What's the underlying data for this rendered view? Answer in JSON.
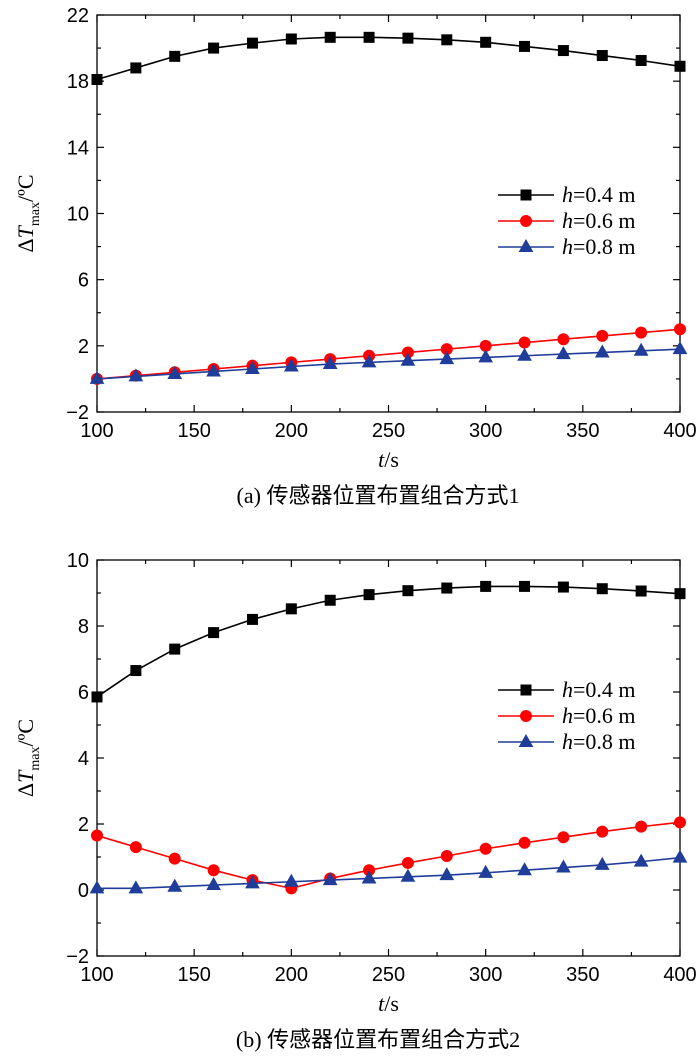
{
  "chart_data": [
    {
      "type": "line",
      "caption": "(a) 传感器位置布置组合方式1",
      "xlabel_var": "t",
      "xlabel_unit": "/s",
      "ylabel_delta": "Δ",
      "ylabel_var": "T",
      "ylabel_sub": "max",
      "ylabel_unit": "/ºC",
      "xlim": [
        100,
        400
      ],
      "ylim": [
        -2,
        22
      ],
      "xticks": [
        100,
        150,
        200,
        250,
        300,
        350,
        400
      ],
      "yticks": [
        -2,
        2,
        6,
        10,
        14,
        18,
        22
      ],
      "ytick_labels": [
        "−2",
        "2",
        "6",
        "10",
        "14",
        "18",
        "22"
      ],
      "x": [
        100,
        120,
        140,
        160,
        180,
        200,
        220,
        240,
        260,
        280,
        300,
        320,
        340,
        360,
        380,
        400
      ],
      "series": [
        {
          "name_var": "h",
          "name_rest": "=0.4 m",
          "color": "#000000",
          "marker": "square",
          "values": [
            18.1,
            18.8,
            19.5,
            20.0,
            20.3,
            20.55,
            20.65,
            20.65,
            20.6,
            20.5,
            20.35,
            20.1,
            19.85,
            19.55,
            19.25,
            18.9
          ]
        },
        {
          "name_var": "h",
          "name_rest": "=0.6 m",
          "color": "#ff0000",
          "marker": "circle",
          "values": [
            0.0,
            0.2,
            0.4,
            0.6,
            0.8,
            1.0,
            1.2,
            1.4,
            1.6,
            1.8,
            2.0,
            2.2,
            2.4,
            2.6,
            2.8,
            3.0
          ]
        },
        {
          "name_var": "h",
          "name_rest": "=0.8 m",
          "color": "#1f3d99",
          "marker": "triangle",
          "values": [
            0.0,
            0.15,
            0.3,
            0.45,
            0.6,
            0.75,
            0.9,
            1.0,
            1.1,
            1.2,
            1.3,
            1.4,
            1.5,
            1.6,
            1.7,
            1.8
          ]
        }
      ]
    },
    {
      "type": "line",
      "caption": "(b) 传感器位置布置组合方式2",
      "xlabel_var": "t",
      "xlabel_unit": "/s",
      "ylabel_delta": "Δ",
      "ylabel_var": "T",
      "ylabel_sub": "max",
      "ylabel_unit": "/ºC",
      "xlim": [
        100,
        400
      ],
      "ylim": [
        -2,
        10
      ],
      "xticks": [
        100,
        150,
        200,
        250,
        300,
        350,
        400
      ],
      "yticks": [
        -2,
        0,
        2,
        4,
        6,
        8,
        10
      ],
      "ytick_labels": [
        "−2",
        "0",
        "2",
        "4",
        "6",
        "8",
        "10"
      ],
      "x": [
        100,
        120,
        140,
        160,
        180,
        200,
        220,
        240,
        260,
        280,
        300,
        320,
        340,
        360,
        380,
        400
      ],
      "series": [
        {
          "name_var": "h",
          "name_rest": "=0.4 m",
          "color": "#000000",
          "marker": "square",
          "values": [
            5.85,
            6.65,
            7.3,
            7.8,
            8.2,
            8.52,
            8.78,
            8.95,
            9.07,
            9.15,
            9.2,
            9.2,
            9.18,
            9.13,
            9.06,
            8.98
          ]
        },
        {
          "name_var": "h",
          "name_rest": "=0.6 m",
          "color": "#ff0000",
          "marker": "circle",
          "values": [
            1.65,
            1.3,
            0.95,
            0.6,
            0.3,
            0.05,
            0.35,
            0.6,
            0.82,
            1.03,
            1.25,
            1.43,
            1.6,
            1.77,
            1.92,
            2.05
          ]
        },
        {
          "name_var": "h",
          "name_rest": "=0.8 m",
          "color": "#1f3d99",
          "marker": "triangle",
          "values": [
            0.05,
            0.05,
            0.1,
            0.15,
            0.2,
            0.25,
            0.3,
            0.35,
            0.4,
            0.45,
            0.52,
            0.6,
            0.68,
            0.76,
            0.86,
            0.98
          ]
        }
      ]
    }
  ]
}
